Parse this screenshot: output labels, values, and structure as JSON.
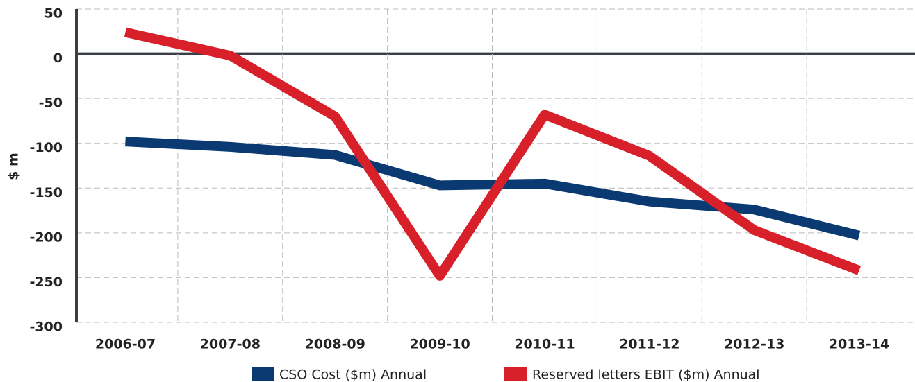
{
  "chart_data": {
    "type": "line",
    "y_label": "$ m",
    "categories": [
      "2006-07",
      "2007-08",
      "2008-09",
      "2009-10",
      "2010-11",
      "2011-12",
      "2012-13",
      "2013-14"
    ],
    "series": [
      {
        "name": "CSO Cost ($m) Annual",
        "color": "#0b3a73",
        "values": [
          -98,
          -104,
          -113,
          -147,
          -145,
          -165,
          -174,
          -203
        ]
      },
      {
        "name": "Reserved letters EBIT ($m) Annual",
        "color": "#d7202a",
        "values": [
          24,
          -2,
          -70,
          -248,
          -68,
          -114,
          -197,
          -242
        ]
      }
    ],
    "ylim": [
      -300,
      50
    ],
    "yticks": [
      50,
      0,
      -50,
      -100,
      -150,
      -200,
      -250,
      -300
    ],
    "grid": true
  }
}
